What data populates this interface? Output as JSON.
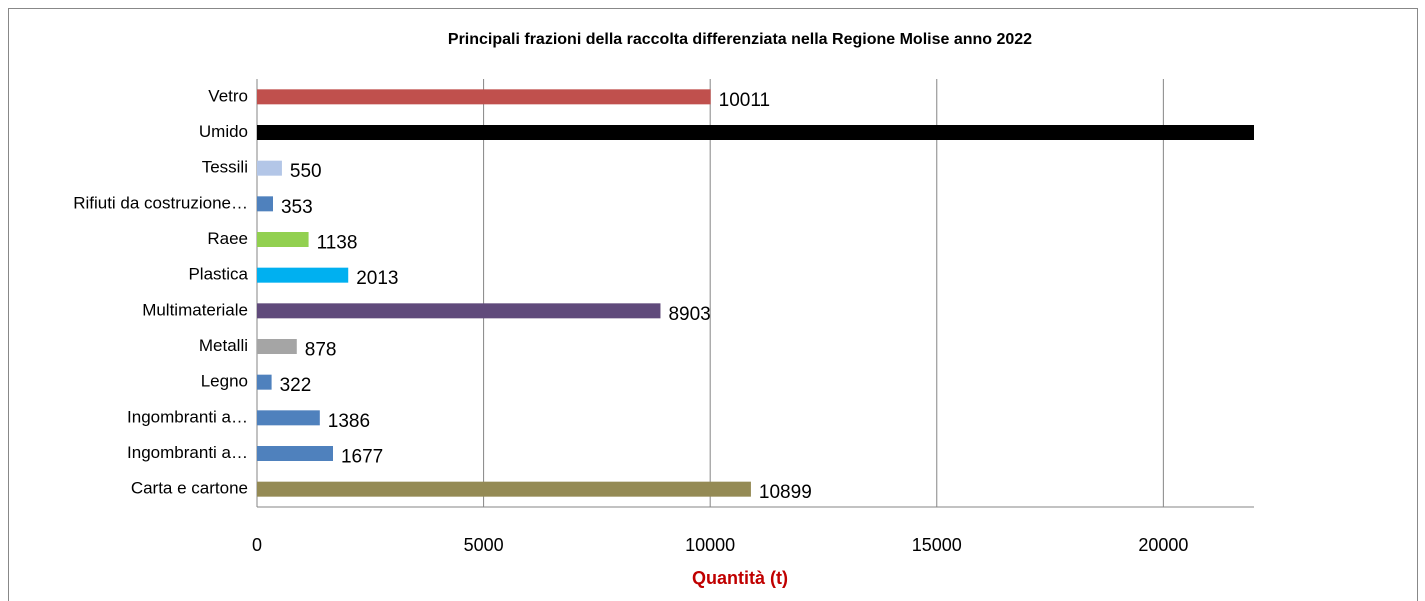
{
  "chart_data": {
    "type": "bar",
    "orientation": "horizontal",
    "title": "Principali frazioni della raccolta differenziata nella Regione Molise anno 2022",
    "x_label": "Quantità (t)",
    "categories": [
      "Carta e cartone",
      "Ingombranti a…",
      "Ingombranti a…",
      "Legno",
      "Metalli",
      "Multimateriale",
      "Plastica",
      "Raee",
      "Rifiuti da costruzione…",
      "Tessili",
      "Umido",
      "Vetro"
    ],
    "values": [
      10899,
      1677,
      1386,
      322,
      878,
      8903,
      2013,
      1138,
      353,
      550,
      22000,
      10011
    ],
    "colors": [
      "#948a54",
      "#4f81bd",
      "#4f81bd",
      "#4f81bd",
      "#a5a5a5",
      "#604a7b",
      "#00b0f0",
      "#92d050",
      "#4f81bd",
      "#b3c6e7",
      "#000000",
      "#c0504d"
    ],
    "xlim": [
      0,
      22000
    ],
    "xticks": [
      0,
      5000,
      10000,
      15000,
      20000
    ],
    "grid": true
  }
}
